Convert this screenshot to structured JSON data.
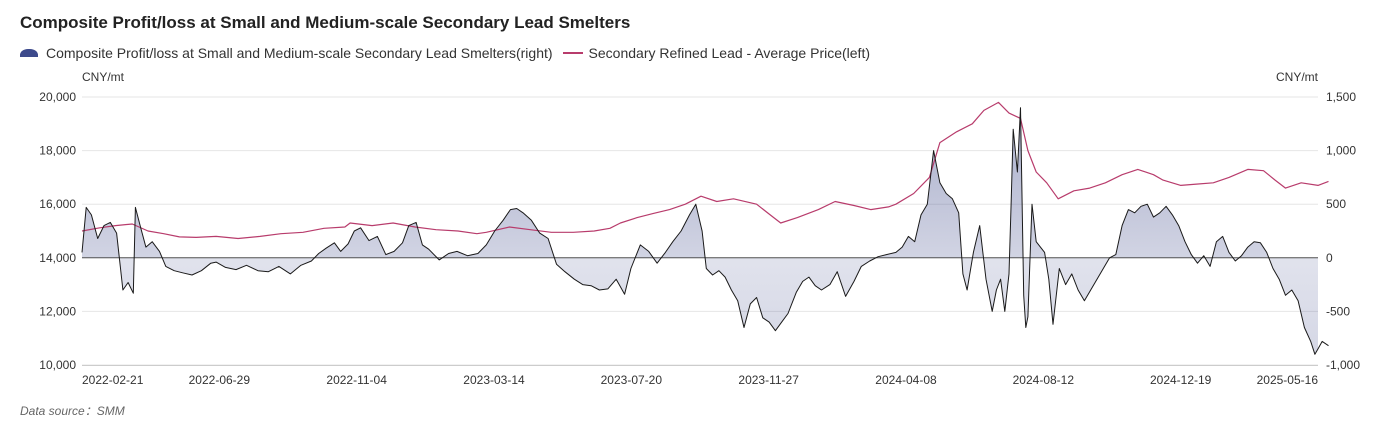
{
  "title": "Composite Profit/loss at Small and Medium-scale Secondary Lead Smelters",
  "source": "Data source：SMM",
  "colors": {
    "profit_line": "#1a1a1a",
    "profit_fill": "#3f4a8a",
    "swatch_fill": "#3d4a8c",
    "price_line": "#b83c6c",
    "grid": "#e6e6e6",
    "zero_line": "#555555"
  },
  "chart_data": {
    "type": "line",
    "title": "Composite Profit/loss at Small and Medium-scale Secondary Lead Smelters",
    "legend_position": "top-left",
    "grid": true,
    "x_tick_labels": [
      "2022-02-21",
      "2022-06-29",
      "2022-11-04",
      "2023-03-14",
      "2023-07-20",
      "2023-11-27",
      "2024-04-08",
      "2024-08-12",
      "2024-12-19",
      "2025-05-16"
    ],
    "x_range": [
      "2022-02-21",
      "2025-05-16"
    ],
    "y_left": {
      "unit": "CNY/mt",
      "range": [
        10000,
        20000
      ],
      "ticks": [
        10000,
        12000,
        14000,
        16000,
        18000,
        20000
      ],
      "tick_labels": [
        "10,000",
        "12,000",
        "14,000",
        "16,000",
        "18,000",
        "20,000"
      ]
    },
    "y_right": {
      "unit": "CNY/mt",
      "range": [
        -1000,
        1500
      ],
      "ticks": [
        -1000,
        -500,
        0,
        500,
        1000,
        1500
      ],
      "tick_labels": [
        "-1,000",
        "-500",
        "0",
        "500",
        "1,000",
        "1,500"
      ]
    },
    "series": [
      {
        "name": "Composite Profit/loss at Small and Medium-scale Secondary Lead Smelters(right)",
        "axis": "right",
        "style": "area",
        "points": [
          [
            "2022-02-21",
            50
          ],
          [
            "2022-02-25",
            470
          ],
          [
            "2022-03-02",
            400
          ],
          [
            "2022-03-08",
            180
          ],
          [
            "2022-03-14",
            300
          ],
          [
            "2022-03-20",
            330
          ],
          [
            "2022-03-26",
            230
          ],
          [
            "2022-04-01",
            -300
          ],
          [
            "2022-04-06",
            -230
          ],
          [
            "2022-04-11",
            -330
          ],
          [
            "2022-04-13",
            470
          ],
          [
            "2022-04-18",
            280
          ],
          [
            "2022-04-23",
            100
          ],
          [
            "2022-04-29",
            150
          ],
          [
            "2022-05-06",
            60
          ],
          [
            "2022-05-12",
            -80
          ],
          [
            "2022-05-20",
            -120
          ],
          [
            "2022-05-28",
            -140
          ],
          [
            "2022-06-06",
            -160
          ],
          [
            "2022-06-15",
            -120
          ],
          [
            "2022-06-24",
            -50
          ],
          [
            "2022-06-29",
            -40
          ],
          [
            "2022-07-08",
            -90
          ],
          [
            "2022-07-18",
            -110
          ],
          [
            "2022-07-28",
            -70
          ],
          [
            "2022-08-08",
            -120
          ],
          [
            "2022-08-18",
            -130
          ],
          [
            "2022-08-28",
            -80
          ],
          [
            "2022-09-08",
            -150
          ],
          [
            "2022-09-18",
            -70
          ],
          [
            "2022-09-28",
            -30
          ],
          [
            "2022-10-05",
            40
          ],
          [
            "2022-10-12",
            90
          ],
          [
            "2022-10-20",
            140
          ],
          [
            "2022-10-26",
            60
          ],
          [
            "2022-11-02",
            130
          ],
          [
            "2022-11-08",
            250
          ],
          [
            "2022-11-14",
            280
          ],
          [
            "2022-11-22",
            160
          ],
          [
            "2022-11-30",
            200
          ],
          [
            "2022-12-08",
            30
          ],
          [
            "2022-12-16",
            60
          ],
          [
            "2022-12-24",
            140
          ],
          [
            "2022-12-30",
            300
          ],
          [
            "2023-01-06",
            330
          ],
          [
            "2023-01-12",
            120
          ],
          [
            "2023-01-18",
            80
          ],
          [
            "2023-01-28",
            -20
          ],
          [
            "2023-02-06",
            40
          ],
          [
            "2023-02-14",
            60
          ],
          [
            "2023-02-24",
            20
          ],
          [
            "2023-03-06",
            40
          ],
          [
            "2023-03-14",
            120
          ],
          [
            "2023-03-22",
            250
          ],
          [
            "2023-03-30",
            350
          ],
          [
            "2023-04-06",
            450
          ],
          [
            "2023-04-12",
            460
          ],
          [
            "2023-04-18",
            420
          ],
          [
            "2023-04-26",
            350
          ],
          [
            "2023-05-04",
            230
          ],
          [
            "2023-05-12",
            180
          ],
          [
            "2023-05-20",
            -60
          ],
          [
            "2023-05-28",
            -130
          ],
          [
            "2023-06-06",
            -200
          ],
          [
            "2023-06-14",
            -250
          ],
          [
            "2023-06-22",
            -260
          ],
          [
            "2023-06-30",
            -300
          ],
          [
            "2023-07-08",
            -290
          ],
          [
            "2023-07-16",
            -200
          ],
          [
            "2023-07-24",
            -340
          ],
          [
            "2023-07-30",
            -100
          ],
          [
            "2023-08-08",
            120
          ],
          [
            "2023-08-16",
            60
          ],
          [
            "2023-08-24",
            -50
          ],
          [
            "2023-09-01",
            50
          ],
          [
            "2023-09-08",
            150
          ],
          [
            "2023-09-16",
            250
          ],
          [
            "2023-09-24",
            400
          ],
          [
            "2023-09-30",
            500
          ],
          [
            "2023-10-06",
            250
          ],
          [
            "2023-10-10",
            -100
          ],
          [
            "2023-10-16",
            -160
          ],
          [
            "2023-10-22",
            -120
          ],
          [
            "2023-10-28",
            -180
          ],
          [
            "2023-11-03",
            -300
          ],
          [
            "2023-11-09",
            -400
          ],
          [
            "2023-11-15",
            -650
          ],
          [
            "2023-11-21",
            -430
          ],
          [
            "2023-11-27",
            -370
          ],
          [
            "2023-12-03",
            -560
          ],
          [
            "2023-12-09",
            -600
          ],
          [
            "2023-12-15",
            -680
          ],
          [
            "2023-12-21",
            -600
          ],
          [
            "2023-12-27",
            -520
          ],
          [
            "2024-01-04",
            -320
          ],
          [
            "2024-01-10",
            -220
          ],
          [
            "2024-01-16",
            -180
          ],
          [
            "2024-01-22",
            -260
          ],
          [
            "2024-01-28",
            -300
          ],
          [
            "2024-02-05",
            -250
          ],
          [
            "2024-02-12",
            -130
          ],
          [
            "2024-02-20",
            -360
          ],
          [
            "2024-02-28",
            -220
          ],
          [
            "2024-03-06",
            -80
          ],
          [
            "2024-03-14",
            -30
          ],
          [
            "2024-03-22",
            10
          ],
          [
            "2024-03-30",
            30
          ],
          [
            "2024-04-08",
            50
          ],
          [
            "2024-04-14",
            100
          ],
          [
            "2024-04-20",
            200
          ],
          [
            "2024-04-26",
            150
          ],
          [
            "2024-05-02",
            400
          ],
          [
            "2024-05-08",
            500
          ],
          [
            "2024-05-14",
            1000
          ],
          [
            "2024-05-20",
            700
          ],
          [
            "2024-05-26",
            600
          ],
          [
            "2024-06-01",
            550
          ],
          [
            "2024-06-07",
            420
          ],
          [
            "2024-06-11",
            -150
          ],
          [
            "2024-06-15",
            -300
          ],
          [
            "2024-06-21",
            50
          ],
          [
            "2024-06-27",
            300
          ],
          [
            "2024-07-03",
            -200
          ],
          [
            "2024-07-09",
            -500
          ],
          [
            "2024-07-13",
            -300
          ],
          [
            "2024-07-17",
            -200
          ],
          [
            "2024-07-21",
            -500
          ],
          [
            "2024-07-25",
            -150
          ],
          [
            "2024-07-27",
            500
          ],
          [
            "2024-07-29",
            1200
          ],
          [
            "2024-08-02",
            800
          ],
          [
            "2024-08-05",
            1400
          ],
          [
            "2024-08-08",
            -350
          ],
          [
            "2024-08-10",
            -650
          ],
          [
            "2024-08-12",
            -550
          ],
          [
            "2024-08-16",
            500
          ],
          [
            "2024-08-20",
            150
          ],
          [
            "2024-08-24",
            100
          ],
          [
            "2024-08-28",
            50
          ],
          [
            "2024-09-01",
            -200
          ],
          [
            "2024-09-05",
            -620
          ],
          [
            "2024-09-11",
            -100
          ],
          [
            "2024-09-17",
            -250
          ],
          [
            "2024-09-23",
            -150
          ],
          [
            "2024-09-29",
            -300
          ],
          [
            "2024-10-05",
            -400
          ],
          [
            "2024-10-11",
            -300
          ],
          [
            "2024-10-17",
            -200
          ],
          [
            "2024-10-23",
            -100
          ],
          [
            "2024-10-29",
            0
          ],
          [
            "2024-11-04",
            30
          ],
          [
            "2024-11-10",
            300
          ],
          [
            "2024-11-16",
            450
          ],
          [
            "2024-11-22",
            420
          ],
          [
            "2024-11-28",
            480
          ],
          [
            "2024-12-04",
            500
          ],
          [
            "2024-12-10",
            380
          ],
          [
            "2024-12-16",
            420
          ],
          [
            "2024-12-22",
            480
          ],
          [
            "2024-12-28",
            400
          ],
          [
            "2025-01-03",
            300
          ],
          [
            "2025-01-09",
            150
          ],
          [
            "2025-01-15",
            30
          ],
          [
            "2025-01-21",
            -50
          ],
          [
            "2025-01-27",
            20
          ],
          [
            "2025-02-02",
            -80
          ],
          [
            "2025-02-08",
            150
          ],
          [
            "2025-02-14",
            200
          ],
          [
            "2025-02-20",
            50
          ],
          [
            "2025-02-26",
            -30
          ],
          [
            "2025-03-04",
            20
          ],
          [
            "2025-03-10",
            100
          ],
          [
            "2025-03-16",
            150
          ],
          [
            "2025-03-22",
            140
          ],
          [
            "2025-03-28",
            50
          ],
          [
            "2025-04-03",
            -100
          ],
          [
            "2025-04-09",
            -200
          ],
          [
            "2025-04-15",
            -350
          ],
          [
            "2025-04-21",
            -300
          ],
          [
            "2025-04-27",
            -400
          ],
          [
            "2025-05-03",
            -650
          ],
          [
            "2025-05-09",
            -780
          ],
          [
            "2025-05-13",
            -900
          ],
          [
            "2025-05-16",
            -850
          ],
          [
            "2025-05-20",
            -780
          ],
          [
            "2025-05-26",
            -820
          ]
        ]
      },
      {
        "name": "Secondary Refined Lead - Average Price(left)",
        "axis": "left",
        "style": "line",
        "points": [
          [
            "2022-02-21",
            15000
          ],
          [
            "2022-03-10",
            15120
          ],
          [
            "2022-03-25",
            15200
          ],
          [
            "2022-04-10",
            15260
          ],
          [
            "2022-04-25",
            15000
          ],
          [
            "2022-05-10",
            14900
          ],
          [
            "2022-05-25",
            14780
          ],
          [
            "2022-06-10",
            14760
          ],
          [
            "2022-06-29",
            14800
          ],
          [
            "2022-07-20",
            14720
          ],
          [
            "2022-08-10",
            14800
          ],
          [
            "2022-08-30",
            14900
          ],
          [
            "2022-09-20",
            14950
          ],
          [
            "2022-10-10",
            15100
          ],
          [
            "2022-10-30",
            15150
          ],
          [
            "2022-11-04",
            15300
          ],
          [
            "2022-11-25",
            15200
          ],
          [
            "2022-12-15",
            15300
          ],
          [
            "2023-01-05",
            15150
          ],
          [
            "2023-01-25",
            15050
          ],
          [
            "2023-02-15",
            15000
          ],
          [
            "2023-03-05",
            14900
          ],
          [
            "2023-03-14",
            14950
          ],
          [
            "2023-04-05",
            15150
          ],
          [
            "2023-04-25",
            15050
          ],
          [
            "2023-05-15",
            14950
          ],
          [
            "2023-06-05",
            14950
          ],
          [
            "2023-06-25",
            15000
          ],
          [
            "2023-07-10",
            15100
          ],
          [
            "2023-07-20",
            15300
          ],
          [
            "2023-08-05",
            15500
          ],
          [
            "2023-08-20",
            15650
          ],
          [
            "2023-09-05",
            15800
          ],
          [
            "2023-09-20",
            16000
          ],
          [
            "2023-10-05",
            16300
          ],
          [
            "2023-10-20",
            16100
          ],
          [
            "2023-11-05",
            16200
          ],
          [
            "2023-11-27",
            16000
          ],
          [
            "2023-12-10",
            15600
          ],
          [
            "2023-12-20",
            15300
          ],
          [
            "2024-01-05",
            15500
          ],
          [
            "2024-01-25",
            15800
          ],
          [
            "2024-02-10",
            16100
          ],
          [
            "2024-02-28",
            15950
          ],
          [
            "2024-03-15",
            15800
          ],
          [
            "2024-04-01",
            15900
          ],
          [
            "2024-04-08",
            16000
          ],
          [
            "2024-04-25",
            16400
          ],
          [
            "2024-05-10",
            17000
          ],
          [
            "2024-05-20",
            18300
          ],
          [
            "2024-06-05",
            18700
          ],
          [
            "2024-06-20",
            19000
          ],
          [
            "2024-07-01",
            19500
          ],
          [
            "2024-07-15",
            19800
          ],
          [
            "2024-07-25",
            19400
          ],
          [
            "2024-08-05",
            19200
          ],
          [
            "2024-08-12",
            18000
          ],
          [
            "2024-08-20",
            17200
          ],
          [
            "2024-08-30",
            16800
          ],
          [
            "2024-09-10",
            16200
          ],
          [
            "2024-09-25",
            16500
          ],
          [
            "2024-10-10",
            16600
          ],
          [
            "2024-10-25",
            16800
          ],
          [
            "2024-11-10",
            17100
          ],
          [
            "2024-11-25",
            17300
          ],
          [
            "2024-12-10",
            17100
          ],
          [
            "2024-12-19",
            16900
          ],
          [
            "2025-01-05",
            16700
          ],
          [
            "2025-01-20",
            16750
          ],
          [
            "2025-02-05",
            16800
          ],
          [
            "2025-02-20",
            17000
          ],
          [
            "2025-03-10",
            17300
          ],
          [
            "2025-03-25",
            17250
          ],
          [
            "2025-04-05",
            16900
          ],
          [
            "2025-04-15",
            16600
          ],
          [
            "2025-04-30",
            16800
          ],
          [
            "2025-05-16",
            16700
          ],
          [
            "2025-05-26",
            16850
          ]
        ]
      }
    ]
  }
}
